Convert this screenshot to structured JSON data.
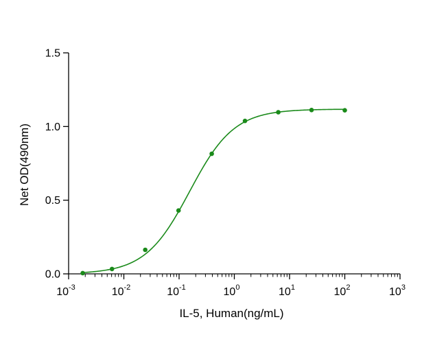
{
  "chart_data": {
    "type": "scatter",
    "xlabel": "IL-5, Human(ng/mL)",
    "ylabel": "Net OD(490nm)",
    "xscale": "log",
    "xlim": [
      0.001,
      1000
    ],
    "ylim": [
      0,
      1.5
    ],
    "x_ticks": [
      {
        "base": "10",
        "exp": "-3"
      },
      {
        "base": "10",
        "exp": "-2"
      },
      {
        "base": "10",
        "exp": "-1"
      },
      {
        "base": "10",
        "exp": "0"
      },
      {
        "base": "10",
        "exp": "1"
      },
      {
        "base": "10",
        "exp": "2"
      },
      {
        "base": "10",
        "exp": "3"
      }
    ],
    "y_ticks": [
      "0.0",
      "0.5",
      "1.0",
      "1.5"
    ],
    "grid": false,
    "color": "#1a8a1a",
    "series": [
      {
        "x": [
          0.0018,
          0.0061,
          0.0244,
          0.0977,
          0.39,
          1.56,
          6.25,
          25,
          100
        ],
        "y": [
          0.005,
          0.033,
          0.163,
          0.43,
          0.815,
          1.038,
          1.097,
          1.112,
          1.11
        ],
        "fit": "four-parameter logistic"
      }
    ]
  }
}
